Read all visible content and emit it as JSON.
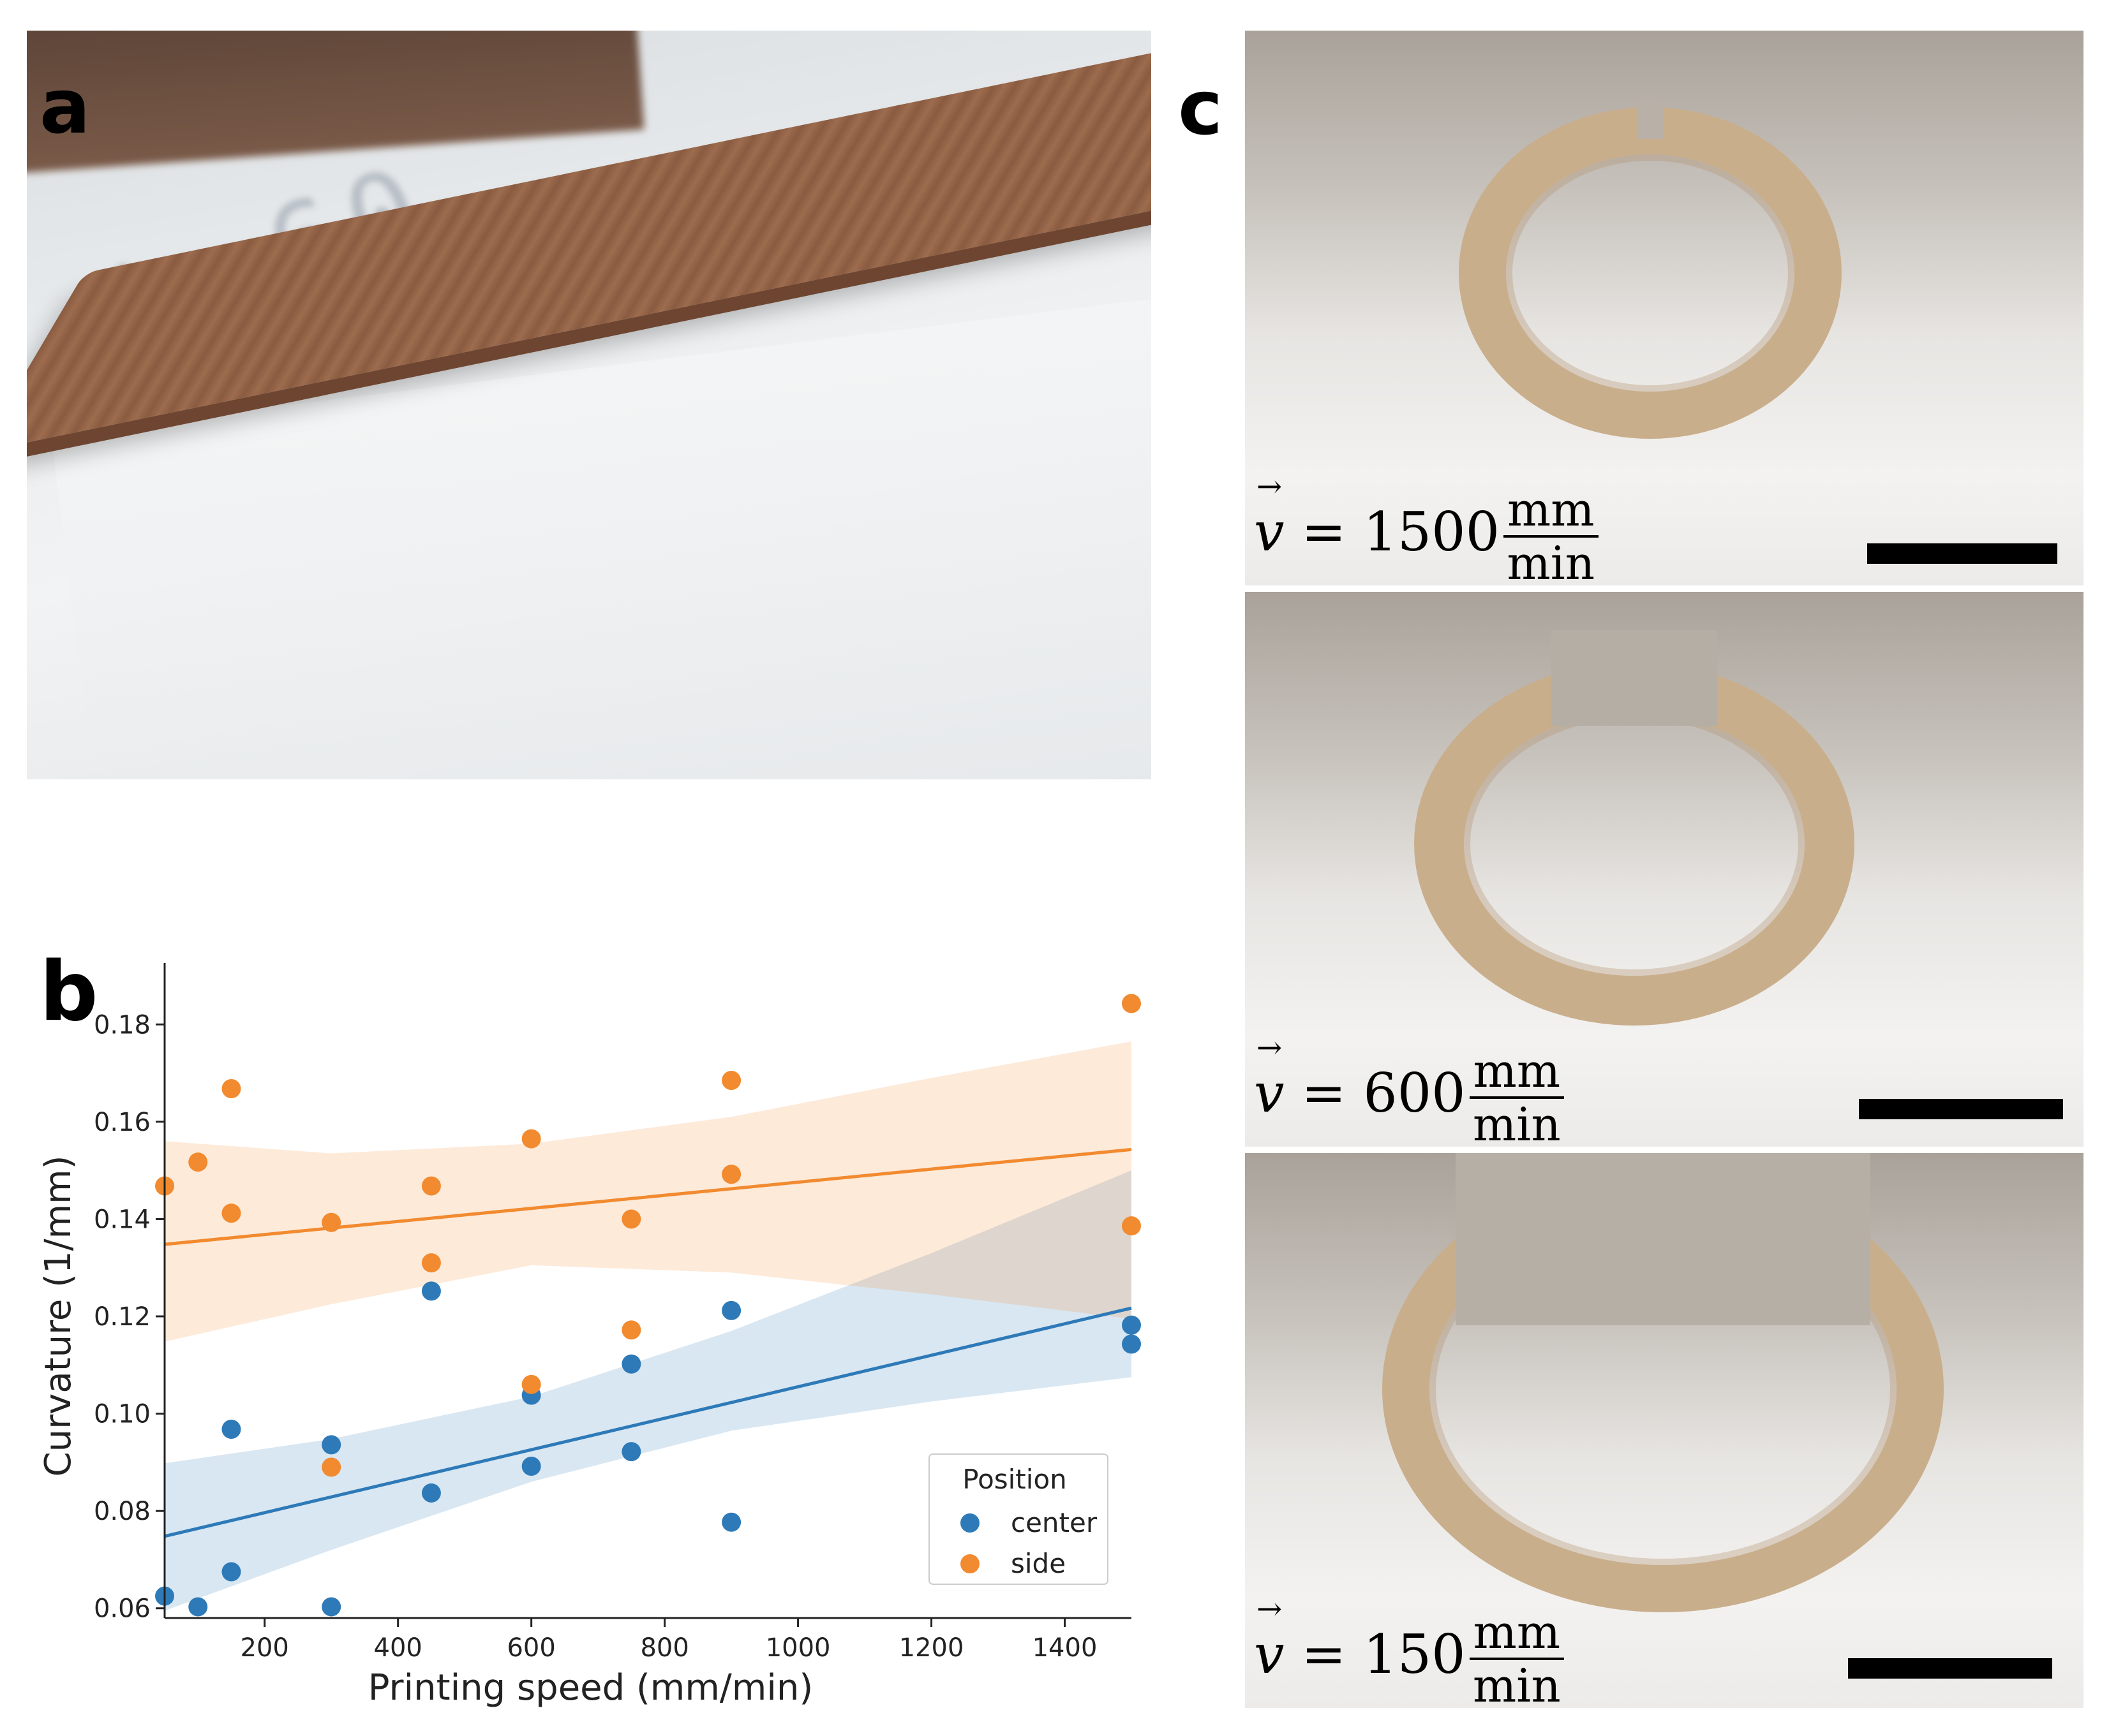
{
  "panels": {
    "a": {
      "label": "a"
    },
    "b": {
      "label": "b"
    },
    "c": {
      "label": "c"
    }
  },
  "photos_c": [
    {
      "v_symbol": "v",
      "eq": "= 1500",
      "unit_num": "mm",
      "unit_den": "min"
    },
    {
      "v_symbol": "v",
      "eq": "= 600",
      "unit_num": "mm",
      "unit_den": "min"
    },
    {
      "v_symbol": "v",
      "eq": "= 150",
      "unit_num": "mm",
      "unit_den": "min"
    }
  ],
  "chart_data": {
    "type": "scatter",
    "xlabel": "Printing speed (mm/min)",
    "ylabel": "Curvature (1/mm)",
    "xlim": [
      50,
      1500
    ],
    "ylim": [
      0.058,
      0.19
    ],
    "xticks": [
      200,
      400,
      600,
      800,
      1000,
      1200,
      1400
    ],
    "yticks": [
      0.06,
      0.08,
      0.1,
      0.12,
      0.14,
      0.16,
      0.18
    ],
    "ytick_labels": [
      "0.06",
      "0.08",
      "0.10",
      "0.12",
      "0.14",
      "0.16",
      "0.18"
    ],
    "grid": false,
    "legend": {
      "title": "Position",
      "placement": "lower-right"
    },
    "series": [
      {
        "name": "center",
        "color": "#2e7ab8",
        "points": [
          [
            50,
            0.0625
          ],
          [
            100,
            0.0603
          ],
          [
            150,
            0.0675
          ],
          [
            150,
            0.0968
          ],
          [
            300,
            0.0603
          ],
          [
            300,
            0.0936
          ],
          [
            450,
            0.0837
          ],
          [
            450,
            0.1252
          ],
          [
            600,
            0.0892
          ],
          [
            600,
            0.1038
          ],
          [
            750,
            0.0922
          ],
          [
            750,
            0.1102
          ],
          [
            900,
            0.0777
          ],
          [
            900,
            0.1212
          ],
          [
            1500,
            0.1143
          ],
          [
            1500,
            0.1182
          ]
        ],
        "fit": {
          "x": [
            50,
            1500
          ],
          "y": [
            0.0748,
            0.1217
          ]
        },
        "ci_upper": [
          [
            50,
            0.0898
          ],
          [
            300,
            0.0948
          ],
          [
            600,
            0.1035
          ],
          [
            900,
            0.117
          ],
          [
            1200,
            0.133
          ],
          [
            1500,
            0.15
          ]
        ],
        "ci_lower": [
          [
            50,
            0.0595
          ],
          [
            300,
            0.072
          ],
          [
            600,
            0.086
          ],
          [
            900,
            0.0965
          ],
          [
            1200,
            0.1025
          ],
          [
            1500,
            0.1075
          ]
        ]
      },
      {
        "name": "side",
        "color": "#f28a2f",
        "points": [
          [
            50,
            0.1468
          ],
          [
            100,
            0.1517
          ],
          [
            150,
            0.1412
          ],
          [
            150,
            0.1668
          ],
          [
            300,
            0.1393
          ],
          [
            300,
            0.089
          ],
          [
            450,
            0.131
          ],
          [
            450,
            0.1468
          ],
          [
            600,
            0.1565
          ],
          [
            600,
            0.106
          ],
          [
            750,
            0.14
          ],
          [
            750,
            0.1172
          ],
          [
            900,
            0.1492
          ],
          [
            900,
            0.1685
          ],
          [
            1500,
            0.1843
          ],
          [
            1500,
            0.1386
          ]
        ],
        "fit": {
          "x": [
            50,
            1500
          ],
          "y": [
            0.1348
          ],
          "y_end": 0.1543
        },
        "ci_upper": [
          [
            50,
            0.156
          ],
          [
            300,
            0.1535
          ],
          [
            600,
            0.1555
          ],
          [
            900,
            0.161
          ],
          [
            1200,
            0.169
          ],
          [
            1500,
            0.1765
          ]
        ],
        "ci_lower": [
          [
            50,
            0.1148
          ],
          [
            300,
            0.1225
          ],
          [
            600,
            0.1305
          ],
          [
            900,
            0.129
          ],
          [
            1200,
            0.1245
          ],
          [
            1500,
            0.1195
          ]
        ]
      }
    ]
  }
}
